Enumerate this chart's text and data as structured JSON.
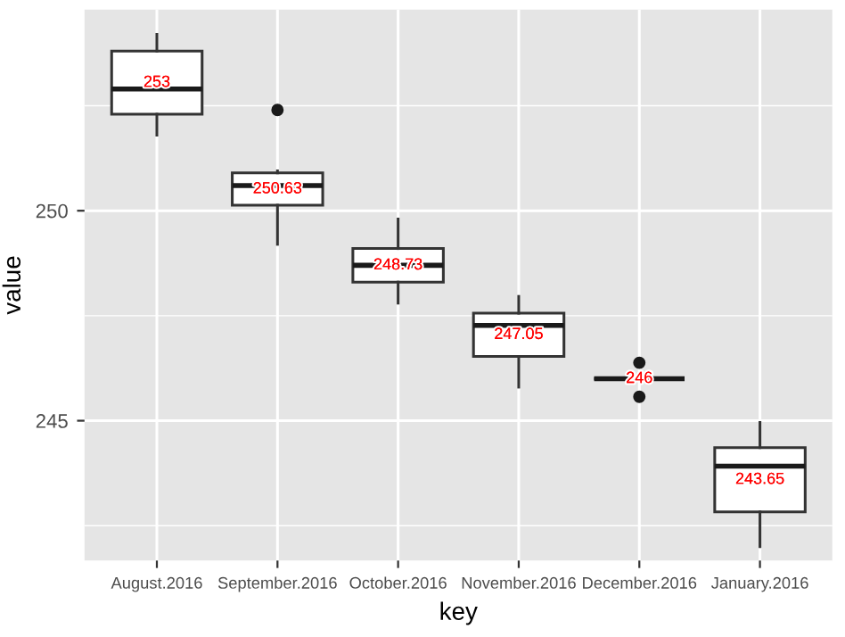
{
  "chart_data": {
    "type": "box",
    "xlabel": "key",
    "ylabel": "value",
    "categories": [
      "August.2016",
      "September.2016",
      "October.2016",
      "November.2016",
      "December.2016",
      "January.2016"
    ],
    "boxes": [
      {
        "low": 251.8,
        "q1": 252.3,
        "median": 252.9,
        "q3": 253.8,
        "high": 254.2
      },
      {
        "low": 249.2,
        "q1": 250.13,
        "median": 250.6,
        "q3": 250.9,
        "high": 250.95,
        "outliers": [
          252.4
        ]
      },
      {
        "low": 247.8,
        "q1": 248.3,
        "median": 248.7,
        "q3": 249.1,
        "high": 249.8
      },
      {
        "low": 245.8,
        "q1": 246.53,
        "median": 247.27,
        "q3": 247.56,
        "high": 247.96
      },
      {
        "low": 246,
        "q1": 246,
        "median": 246,
        "q3": 246,
        "high": 246,
        "outliers": [
          246.38,
          245.57
        ]
      },
      {
        "low": 242,
        "q1": 242.83,
        "median": 243.92,
        "q3": 244.36,
        "high": 244.96
      }
    ],
    "annotations": [
      "253",
      "250.63",
      "248.73",
      "247.05",
      "246",
      "243.65"
    ],
    "ylim": [
      241.67,
      254.79
    ],
    "yticks": [
      245,
      250
    ],
    "grid": true
  }
}
